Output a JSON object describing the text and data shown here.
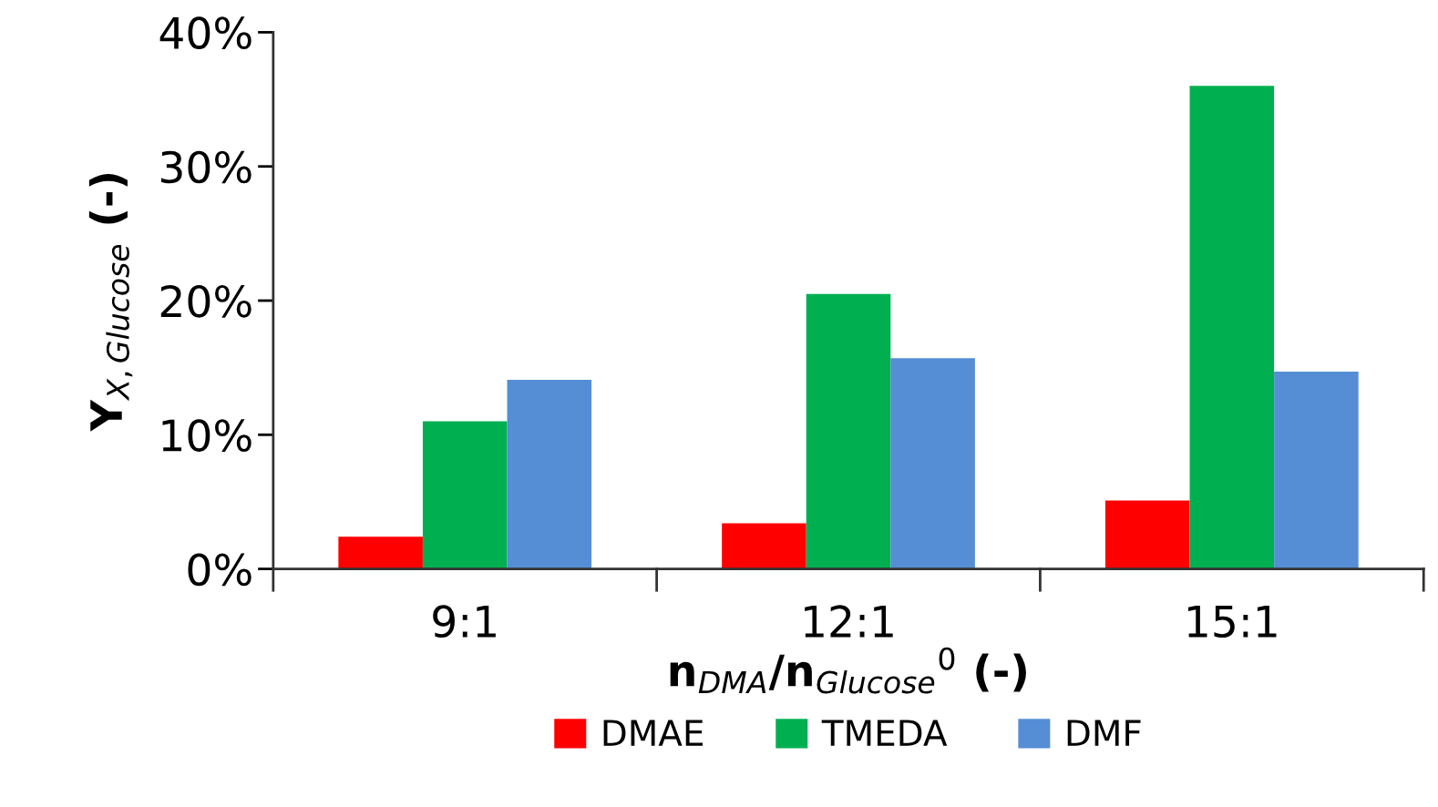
{
  "chart_data": {
    "type": "bar",
    "xlabel": "n$_{DMA}$/n$_{Glucose}$$^{0}$ (-)",
    "ylabel": "Y$_{X,Glucose}$ (-)",
    "categories": [
      "9:1",
      "12:1",
      "15:1"
    ],
    "series": [
      {
        "name": "DMAE",
        "color": "#ff0000",
        "values": [
          2.4,
          3.4,
          5.1
        ]
      },
      {
        "name": "TMEDA",
        "color": "#00b050",
        "values": [
          11.0,
          20.5,
          36.0
        ]
      },
      {
        "name": "DMF",
        "color": "#558ed5",
        "values": [
          14.1,
          15.7,
          14.7
        ]
      }
    ],
    "ylim": [
      0,
      40
    ],
    "yticks": [
      {
        "value": 0,
        "label": "0%"
      },
      {
        "value": 10,
        "label": "10%"
      },
      {
        "value": 20,
        "label": "20%"
      },
      {
        "value": 30,
        "label": "30%"
      },
      {
        "value": 40,
        "label": "40%"
      }
    ],
    "grid": false,
    "legend": "bottom"
  }
}
